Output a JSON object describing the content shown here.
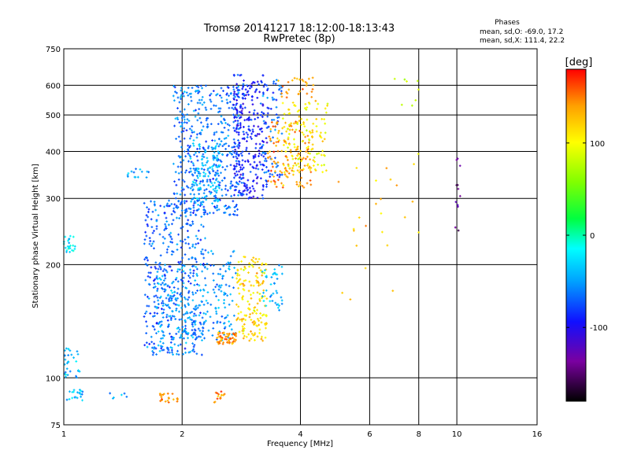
{
  "chart_data": {
    "type": "scatter",
    "title": "Tromsø 20141217 18:12:00-18:13:43",
    "subtitle": "RwPretec (8p)",
    "stats": {
      "header": "Phases",
      "line_o": "mean, sd,O: -69.0, 17.2",
      "line_x": "mean, sd,X: 111.4, 22.2"
    },
    "xlabel": "Frequency [MHz]",
    "ylabel": "Stationary phase Virtual Height [km]",
    "x_scale": "log",
    "y_scale": "log",
    "xlim": [
      1,
      16
    ],
    "ylim": [
      75,
      750
    ],
    "x_ticks": [
      1,
      2,
      4,
      6,
      8,
      10,
      16
    ],
    "x_tick_labels": [
      "1",
      "2",
      "4",
      "6",
      "8",
      "10",
      "16"
    ],
    "y_ticks": [
      75,
      100,
      200,
      300,
      400,
      500,
      600,
      750
    ],
    "y_tick_labels": [
      "75",
      "100",
      "200",
      "300",
      "400",
      "500",
      "600",
      "750"
    ],
    "grid": true,
    "colorbar": {
      "label": "[deg]",
      "range": [
        -180,
        180
      ],
      "ticks": [
        100,
        0,
        -100
      ],
      "tick_labels": [
        "100",
        "0",
        "-100"
      ],
      "colors": [
        "#000000",
        "#7a00a0",
        "#1010ff",
        "#00a0ff",
        "#00ffff",
        "#00ff40",
        "#80ff00",
        "#ffff00",
        "#ffa000",
        "#ff0000"
      ]
    },
    "clusters": [
      {
        "x": [
          1.0,
          1.07
        ],
        "y": [
          215,
          240
        ],
        "phase": -20,
        "n": 25
      },
      {
        "x": [
          1.0,
          1.1
        ],
        "y": [
          100,
          120
        ],
        "phase": -40,
        "n": 30
      },
      {
        "x": [
          1.0,
          1.12
        ],
        "y": [
          87,
          93
        ],
        "phase": -40,
        "n": 20
      },
      {
        "x": [
          1.3,
          1.5
        ],
        "y": [
          88,
          92
        ],
        "phase": -50,
        "n": 6
      },
      {
        "x": [
          1.75,
          1.95
        ],
        "y": [
          86,
          91
        ],
        "phase": 140,
        "n": 22
      },
      {
        "x": [
          2.4,
          2.6
        ],
        "y": [
          86,
          92
        ],
        "phase": 145,
        "n": 15
      },
      {
        "x": [
          1.45,
          1.65
        ],
        "y": [
          340,
          360
        ],
        "phase": -45,
        "n": 14
      },
      {
        "x": [
          1.6,
          2.3
        ],
        "y": [
          115,
          300
        ],
        "phase": -70,
        "n": 380
      },
      {
        "x": [
          1.7,
          2.2
        ],
        "y": [
          115,
          200
        ],
        "phase": -50,
        "n": 160
      },
      {
        "x": [
          2.2,
          2.75
        ],
        "y": [
          125,
          220
        ],
        "phase": -50,
        "n": 120
      },
      {
        "x": [
          1.9,
          2.8
        ],
        "y": [
          270,
          600
        ],
        "phase": -65,
        "n": 420
      },
      {
        "x": [
          2.1,
          2.5
        ],
        "y": [
          280,
          420
        ],
        "phase": -40,
        "n": 120
      },
      {
        "x": [
          2.7,
          3.3
        ],
        "y": [
          300,
          640
        ],
        "phase": -90,
        "n": 300
      },
      {
        "x": [
          3.2,
          3.6
        ],
        "y": [
          340,
          620
        ],
        "phase": -70,
        "n": 70
      },
      {
        "x": [
          2.45,
          2.75
        ],
        "y": [
          123,
          132
        ],
        "phase": 140,
        "n": 60
      },
      {
        "x": [
          2.75,
          3.3
        ],
        "y": [
          125,
          210
        ],
        "phase": 115,
        "n": 170
      },
      {
        "x": [
          3.2,
          3.6
        ],
        "y": [
          150,
          200
        ],
        "phase": -40,
        "n": 40
      },
      {
        "x": [
          3.3,
          4.3
        ],
        "y": [
          320,
          480
        ],
        "phase": 140,
        "n": 130
      },
      {
        "x": [
          3.6,
          4.7
        ],
        "y": [
          350,
          540
        ],
        "phase": 105,
        "n": 120
      },
      {
        "x": [
          3.5,
          4.4
        ],
        "y": [
          540,
          630
        ],
        "phase": 140,
        "n": 30
      },
      {
        "x": [
          5.0,
          8.0
        ],
        "y": [
          150,
          400
        ],
        "phase": 120,
        "n": 25
      },
      {
        "x": [
          9.9,
          10.2
        ],
        "y": [
          240,
          400
        ],
        "phase": -140,
        "n": 12
      },
      {
        "x": [
          6.9,
          8.0
        ],
        "y": [
          500,
          640
        ],
        "phase": 80,
        "n": 8
      }
    ]
  }
}
